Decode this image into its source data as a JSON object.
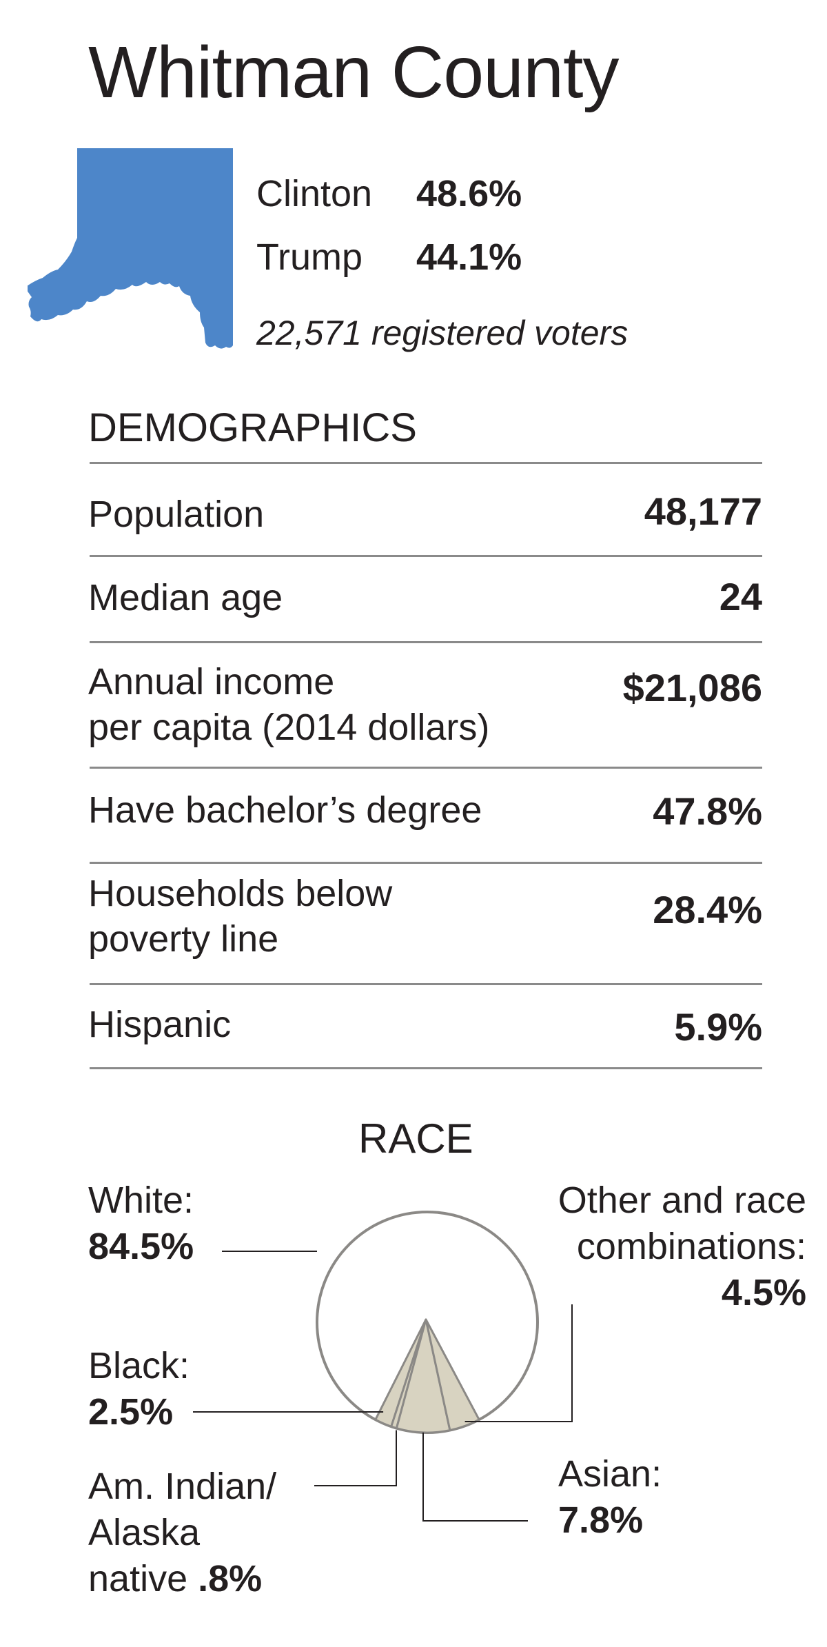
{
  "title": "Whitman County",
  "map_color": "#4d86c9",
  "results": [
    {
      "candidate": "Clinton",
      "percent": "48.6%"
    },
    {
      "candidate": "Trump",
      "percent": "44.1%"
    }
  ],
  "registered_voters": "22,571 registered voters",
  "demographics": {
    "heading": "DEMOGRAPHICS",
    "rows": [
      {
        "label": "Population",
        "value": "48,177"
      },
      {
        "label": "Median age",
        "value": "24"
      },
      {
        "label": "Annual income",
        "label_line2": "per capita (2014 dollars)",
        "value": "$21,086"
      },
      {
        "label": "Have bachelor’s degree",
        "value": "47.8%"
      },
      {
        "label": "Households below",
        "label_line2": "poverty line",
        "value": "28.4%"
      },
      {
        "label": "Hispanic",
        "value": "5.9%"
      }
    ]
  },
  "chart_data": {
    "type": "pie",
    "title": "RACE",
    "slices": [
      {
        "label": "White:",
        "value_text": "84.5%",
        "value": 84.5,
        "color": "#ffffff"
      },
      {
        "label": "Other and race combinations:",
        "label_line1": "Other and race",
        "label_line2": "combinations:",
        "value_text": "4.5%",
        "value": 4.5,
        "color": "#d8d3c1"
      },
      {
        "label": "Asian:",
        "value_text": "7.8%",
        "value": 7.8,
        "color": "#d8d3c1"
      },
      {
        "label": "Am. Indian/ Alaska native",
        "label_line1": "Am. Indian/",
        "label_line2": "Alaska",
        "label_line3": "native",
        "value_text": ".8%",
        "value": 0.8,
        "color": "#d8d3c1"
      },
      {
        "label": "Black:",
        "value_text": "2.5%",
        "value": 2.5,
        "color": "#d8d3c1"
      }
    ],
    "outline_color": "#8b8986"
  }
}
